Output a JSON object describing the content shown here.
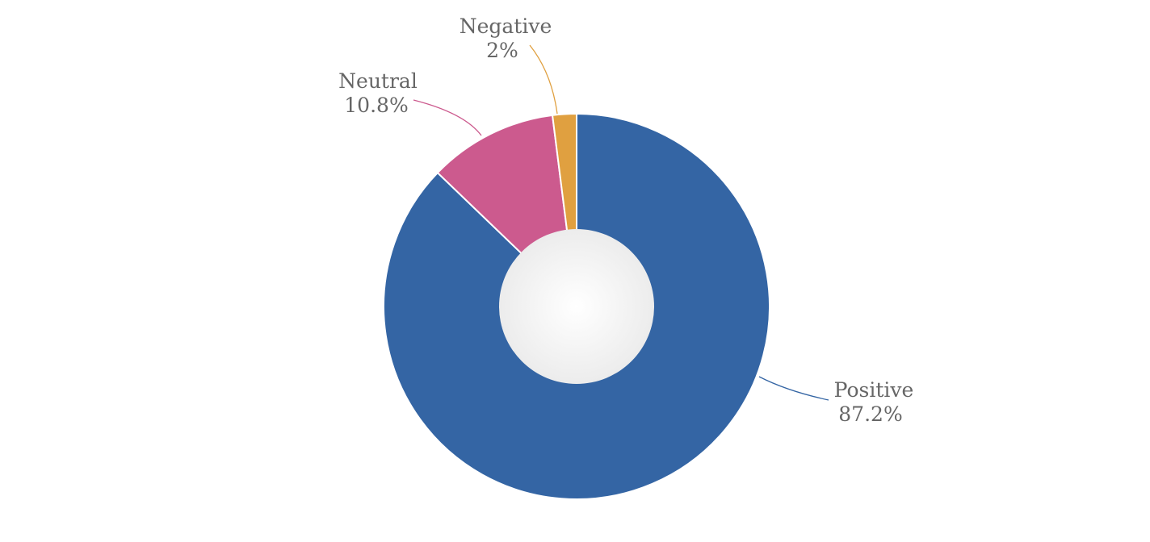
{
  "chart_data": {
    "type": "pie",
    "variant": "donut",
    "title": "",
    "legend": "none",
    "categories": [
      "Positive",
      "Neutral",
      "Negative"
    ],
    "values": [
      87.2,
      10.8,
      2
    ],
    "labels": [
      "87.2%",
      "10.8%",
      "2%"
    ],
    "colors": [
      "#3465A4",
      "#CC5A8E",
      "#E0A040"
    ],
    "start_angle_deg": 0,
    "direction": "clockwise"
  }
}
